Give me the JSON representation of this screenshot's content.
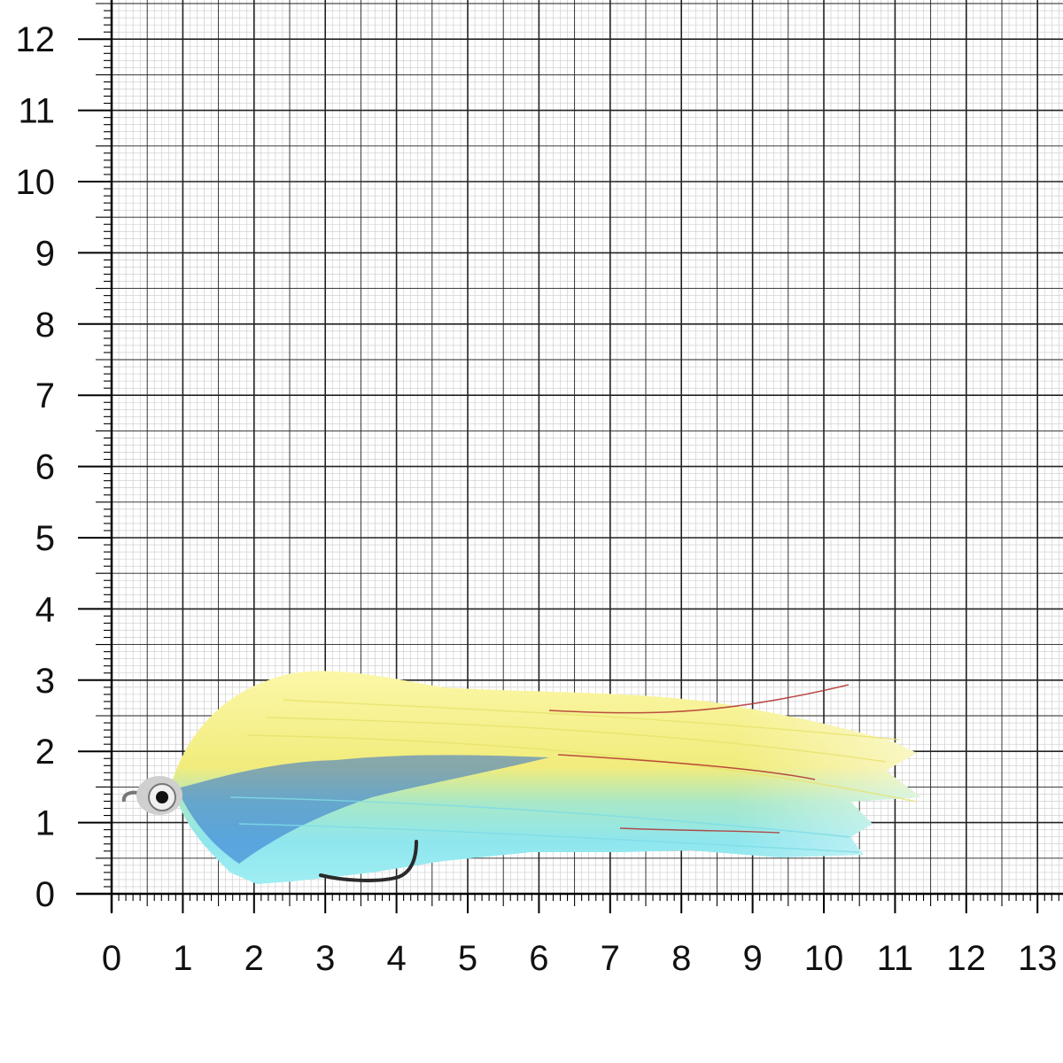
{
  "scale": {
    "unit": "cm",
    "x_ticks": [
      "0",
      "1",
      "2",
      "3",
      "4",
      "5",
      "6",
      "7",
      "8",
      "9",
      "10",
      "11",
      "12",
      "13"
    ],
    "y_ticks": [
      "0",
      "1",
      "2",
      "3",
      "4",
      "5",
      "6",
      "7",
      "8",
      "9",
      "10",
      "11",
      "12"
    ]
  },
  "subject": {
    "name_icon": "fly-lure-streamer",
    "colors": {
      "top_wing": "#f6f08a",
      "belly": "#8fe6ee",
      "mid_stripe": "#2d6fd0",
      "flash": "#b03030",
      "hook": "#2a2a2a",
      "eye": "#d8d8d8"
    }
  },
  "colors": {
    "grid_minor": "#c9c9c9",
    "grid_major": "#222222",
    "axis": "#000000",
    "background": "#ffffff"
  }
}
